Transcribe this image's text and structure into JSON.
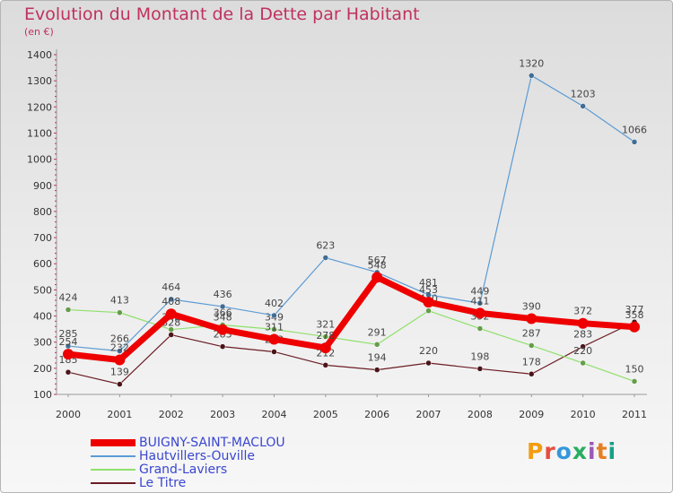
{
  "title": "Evolution du Montant de la Dette par Habitant",
  "subtitle": "(en €)",
  "logo": "Proxiti",
  "logo_colors": [
    "#f39c12",
    "#e74c3c",
    "#3498db",
    "#27ae60",
    "#9b59b6",
    "#e67e22",
    "#16a085"
  ],
  "chart_data": {
    "type": "line",
    "title": "Evolution du Montant de la Dette par Habitant",
    "subtitle": "(en €)",
    "x": [
      "2000",
      "2001",
      "2002",
      "2003",
      "2004",
      "2005",
      "2006",
      "2007",
      "2008",
      "2009",
      "2010",
      "2011"
    ],
    "ylim": [
      100,
      1400
    ],
    "yticks": [
      100,
      200,
      300,
      400,
      500,
      600,
      700,
      800,
      900,
      1000,
      1100,
      1200,
      1300,
      1400
    ],
    "grid": false,
    "legend_position": "bottom-left",
    "series": [
      {
        "name": "Le Titre",
        "color": "#6b1d24",
        "values": [
          185,
          139,
          328,
          283,
          263,
          212,
          194,
          220,
          198,
          178,
          283,
          377
        ]
      },
      {
        "name": "Grand-Laviers",
        "color": "#8fe06a",
        "values": [
          424,
          413,
          348,
          366,
          349,
          321,
          291,
          420,
          352,
          287,
          220,
          150
        ]
      },
      {
        "name": "Hautvillers-Ouville",
        "color": "#5b9bd5",
        "values": [
          285,
          266,
          464,
          436,
          402,
          623,
          567,
          481,
          449,
          1320,
          1203,
          1066
        ]
      },
      {
        "name": "BUIGNY-SAINT-MACLOU",
        "color": "#ee0000",
        "values": [
          254,
          232,
          408,
          348,
          311,
          278,
          548,
          453,
          411,
          390,
          372,
          358
        ]
      }
    ],
    "legend_order": [
      "BUIGNY-SAINT-MACLOU",
      "Hautvillers-Ouville",
      "Grand-Laviers",
      "Le Titre"
    ]
  }
}
